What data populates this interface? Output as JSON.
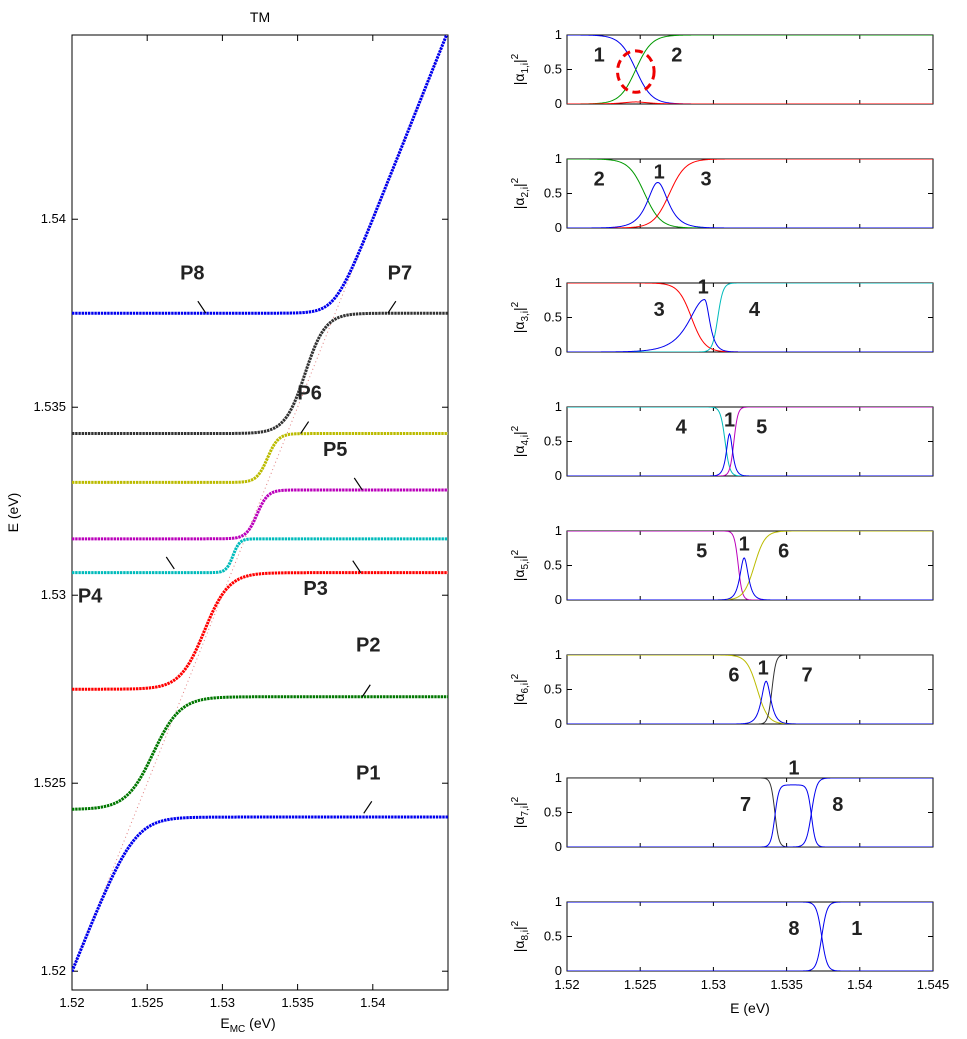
{
  "chart_data": [
    {
      "type": "line",
      "title": "TM",
      "xlabel_main": "E",
      "xlabel_sub": "MC",
      "xlabel_unit": " (eV)",
      "ylabel": "E (eV)",
      "xlim": [
        1.52,
        1.545
      ],
      "ylim": [
        1.5195,
        1.5449
      ],
      "xticks": [
        "1.52",
        "1.525",
        "1.53",
        "1.535",
        "1.54"
      ],
      "xtick_values": [
        1.52,
        1.525,
        1.53,
        1.535,
        1.54
      ],
      "yticks": [
        "1.52",
        "1.525",
        "1.53",
        "1.535",
        "1.54"
      ],
      "ytick_values": [
        1.52,
        1.525,
        1.53,
        1.535,
        1.54
      ],
      "diagonal": {
        "name": "E = E_MC",
        "color": "#e08080",
        "style": "dotted"
      },
      "series": [
        {
          "name": "P1",
          "color": "#0000ee",
          "low": 1.5195,
          "high": 1.5241,
          "center": 1.5226,
          "width": 0.0028,
          "kind": "lower"
        },
        {
          "name": "P2",
          "color": "#007700",
          "low": 1.5243,
          "high": 1.5273,
          "center": 1.5254,
          "width": 0.002,
          "kind": "step"
        },
        {
          "name": "P3",
          "color": "#ff0000",
          "low": 1.5275,
          "high": 1.5306,
          "center": 1.5288,
          "width": 0.0018,
          "kind": "step"
        },
        {
          "name": "P4",
          "color": "#00bbbb",
          "low": 1.5306,
          "high": 1.5315,
          "center": 1.5307,
          "width": 0.0005,
          "kind": "step"
        },
        {
          "name": "P5",
          "color": "#bb00bb",
          "low": 1.5315,
          "high": 1.5328,
          "center": 1.5323,
          "width": 0.0008,
          "kind": "step"
        },
        {
          "name": "P6",
          "color": "#bbbb00",
          "low": 1.533,
          "high": 1.5343,
          "center": 1.533,
          "width": 0.0008,
          "kind": "step"
        },
        {
          "name": "P7",
          "color": "#333333",
          "low": 1.5343,
          "high": 1.5375,
          "center": 1.5355,
          "width": 0.0015,
          "kind": "step"
        },
        {
          "name": "P8",
          "color": "#0000ee",
          "low": 1.5375,
          "high": 1.5449,
          "center": 1.5375,
          "width": 0.0015,
          "kind": "upper"
        }
      ],
      "annotations": [
        {
          "text": "P1",
          "x": 1.5394,
          "y": 1.5242,
          "tx": 1.5397,
          "ty": 1.5251
        },
        {
          "text": "P2",
          "x": 1.5393,
          "y": 1.5273,
          "tx": 1.5397,
          "ty": 1.5285
        },
        {
          "text": "P3",
          "x": 1.5392,
          "y": 1.5306,
          "tx": 1.5362,
          "ty": 1.53
        },
        {
          "text": "P4",
          "x": 1.5268,
          "y": 1.5307,
          "tx": 1.5212,
          "ty": 1.5298
        },
        {
          "text": "P5",
          "x": 1.5393,
          "y": 1.5328,
          "tx": 1.5375,
          "ty": 1.5337
        },
        {
          "text": "P6",
          "x": 1.5352,
          "y": 1.5343,
          "tx": 1.5358,
          "ty": 1.5352
        },
        {
          "text": "P7",
          "x": 1.541,
          "y": 1.5375,
          "tx": 1.5418,
          "ty": 1.5384
        },
        {
          "text": "P8",
          "x": 1.5289,
          "y": 1.5375,
          "tx": 1.528,
          "ty": 1.5384
        }
      ]
    },
    {
      "type": "line",
      "panels": true,
      "xlabel": "E (eV)",
      "xlim": [
        1.52,
        1.545
      ],
      "xticks": [
        "1.52",
        "1.525",
        "1.53",
        "1.535",
        "1.54",
        "1.545"
      ],
      "xtick_values": [
        1.52,
        1.525,
        1.53,
        1.535,
        1.54,
        1.545
      ],
      "yticks": [
        "0",
        "0.5",
        "1"
      ],
      "ytick_values": [
        0,
        0.5,
        1
      ],
      "ylim": [
        0,
        1
      ],
      "panel_list": [
        {
          "ylabel_sub": "1,i",
          "ylabel_pre": "|α",
          "ylabel_post": "|",
          "ylabel_sup": "2",
          "series": [
            {
              "name": "1",
              "color": "#0000ee",
              "center": 1.5247,
              "width": 0.0012,
              "kind": "fall"
            },
            {
              "name": "2",
              "color": "#009900",
              "center": 1.5247,
              "width": 0.0012,
              "kind": "rise"
            },
            {
              "name": "3",
              "color": "#ff0000",
              "center": 1.5247,
              "width": 0.0012,
              "kind": "bump",
              "amp": 0.03
            }
          ],
          "labels": [
            {
              "text": "1",
              "x": 1.5222,
              "y": 0.72
            },
            {
              "text": "2",
              "x": 1.5275,
              "y": 0.72
            }
          ],
          "circle": {
            "x": 1.5247,
            "y": 0.47,
            "rx": 0.00125,
            "ry": 0.3,
            "color": "#ee0000"
          }
        },
        {
          "ylabel_sub": "2,i",
          "ylabel_pre": "|α",
          "ylabel_post": "|",
          "ylabel_sup": "2",
          "series": [
            {
              "name": "2",
              "color": "#009900",
              "center": 1.5253,
              "width": 0.0012,
              "kind": "fall"
            },
            {
              "name": "3",
              "color": "#ff0000",
              "center": 1.527,
              "width": 0.0012,
              "kind": "rise"
            },
            {
              "name": "1",
              "color": "#0000ee",
              "center": 1.5262,
              "width": 0.001,
              "kind": "bump",
              "amp": 0.66
            }
          ],
          "labels": [
            {
              "text": "2",
              "x": 1.5222,
              "y": 0.72
            },
            {
              "text": "1",
              "x": 1.5263,
              "y": 0.82
            },
            {
              "text": "3",
              "x": 1.5295,
              "y": 0.72
            }
          ]
        },
        {
          "ylabel_sub": "3,i",
          "ylabel_pre": "|α",
          "ylabel_post": "|",
          "ylabel_sup": "2",
          "series": [
            {
              "name": "3",
              "color": "#ff0000",
              "center": 1.5285,
              "width": 0.001,
              "kind": "fall"
            },
            {
              "name": "4",
              "color": "#00bbbb",
              "center": 1.5303,
              "width": 0.0004,
              "kind": "rise"
            },
            {
              "name": "1",
              "color": "#0000ee",
              "center": 1.5294,
              "width": 0.0009,
              "kind": "bumpasym",
              "amp": 0.76
            }
          ],
          "labels": [
            {
              "text": "3",
              "x": 1.5263,
              "y": 0.62
            },
            {
              "text": "1",
              "x": 1.5293,
              "y": 0.95
            },
            {
              "text": "4",
              "x": 1.5328,
              "y": 0.62
            }
          ]
        },
        {
          "ylabel_sub": "4,i",
          "ylabel_pre": "|α",
          "ylabel_post": "|",
          "ylabel_sup": "2",
          "series": [
            {
              "name": "4",
              "color": "#00bbbb",
              "center": 1.5308,
              "width": 0.00035,
              "kind": "fall"
            },
            {
              "name": "5",
              "color": "#bb00bb",
              "center": 1.5314,
              "width": 0.0003,
              "kind": "rise"
            },
            {
              "name": "1",
              "color": "#0000ee",
              "center": 1.5311,
              "width": 0.0003,
              "kind": "bump",
              "amp": 0.61
            }
          ],
          "labels": [
            {
              "text": "4",
              "x": 1.5278,
              "y": 0.72
            },
            {
              "text": "1",
              "x": 1.5311,
              "y": 0.82
            },
            {
              "text": "5",
              "x": 1.5333,
              "y": 0.72
            }
          ]
        },
        {
          "ylabel_sub": "5,i",
          "ylabel_pre": "|α",
          "ylabel_post": "|",
          "ylabel_sup": "2",
          "series": [
            {
              "name": "5",
              "color": "#bb00bb",
              "center": 1.5317,
              "width": 0.0003,
              "kind": "fall"
            },
            {
              "name": "6",
              "color": "#bbbb00",
              "center": 1.5328,
              "width": 0.0008,
              "kind": "rise"
            },
            {
              "name": "1",
              "color": "#0000ee",
              "center": 1.5321,
              "width": 0.0004,
              "kind": "bump",
              "amp": 0.61
            }
          ],
          "labels": [
            {
              "text": "5",
              "x": 1.5292,
              "y": 0.72
            },
            {
              "text": "1",
              "x": 1.5321,
              "y": 0.82
            },
            {
              "text": "6",
              "x": 1.5348,
              "y": 0.72
            }
          ]
        },
        {
          "ylabel_sub": "6,i",
          "ylabel_pre": "|α",
          "ylabel_post": "|",
          "ylabel_sup": "2",
          "series": [
            {
              "name": "6",
              "color": "#bbbb00",
              "center": 1.533,
              "width": 0.0008,
              "kind": "fall"
            },
            {
              "name": "7",
              "color": "#333333",
              "center": 1.534,
              "width": 0.0003,
              "kind": "rise"
            },
            {
              "name": "1",
              "color": "#0000ee",
              "center": 1.5336,
              "width": 0.00045,
              "kind": "bump",
              "amp": 0.62
            }
          ],
          "labels": [
            {
              "text": "6",
              "x": 1.5314,
              "y": 0.72
            },
            {
              "text": "1",
              "x": 1.5334,
              "y": 0.82
            },
            {
              "text": "7",
              "x": 1.5364,
              "y": 0.72
            }
          ]
        },
        {
          "ylabel_sub": "7,i",
          "ylabel_pre": "|α",
          "ylabel_post": "|",
          "ylabel_sup": "2",
          "series": [
            {
              "name": "7",
              "color": "#333333",
              "center": 1.5342,
              "width": 0.0003,
              "kind": "fall"
            },
            {
              "name": "8",
              "color": "#0000ee",
              "center": 1.5367,
              "width": 0.0004,
              "kind": "rise"
            },
            {
              "name": "1",
              "color": "#0000ee",
              "center": 1.5354,
              "width": 0.001,
              "kind": "plateau",
              "amp": 0.9,
              "left": 1.5342,
              "right": 1.5367,
              "lw": 0.0003
            }
          ],
          "labels": [
            {
              "text": "7",
              "x": 1.5322,
              "y": 0.62
            },
            {
              "text": "1",
              "x": 1.5355,
              "y": 1.15
            },
            {
              "text": "8",
              "x": 1.5385,
              "y": 0.62
            }
          ]
        },
        {
          "ylabel_sub": "8,i",
          "ylabel_pre": "|α",
          "ylabel_post": "|",
          "ylabel_sup": "2",
          "series": [
            {
              "name": "8",
              "color": "#0000ee",
              "center": 1.5374,
              "width": 0.0004,
              "kind": "fall"
            },
            {
              "name": "1",
              "color": "#0000ee",
              "center": 1.5374,
              "width": 0.0004,
              "kind": "rise"
            }
          ],
          "labels": [
            {
              "text": "8",
              "x": 1.5355,
              "y": 0.62
            },
            {
              "text": "1",
              "x": 1.5398,
              "y": 0.62
            }
          ]
        }
      ]
    }
  ]
}
